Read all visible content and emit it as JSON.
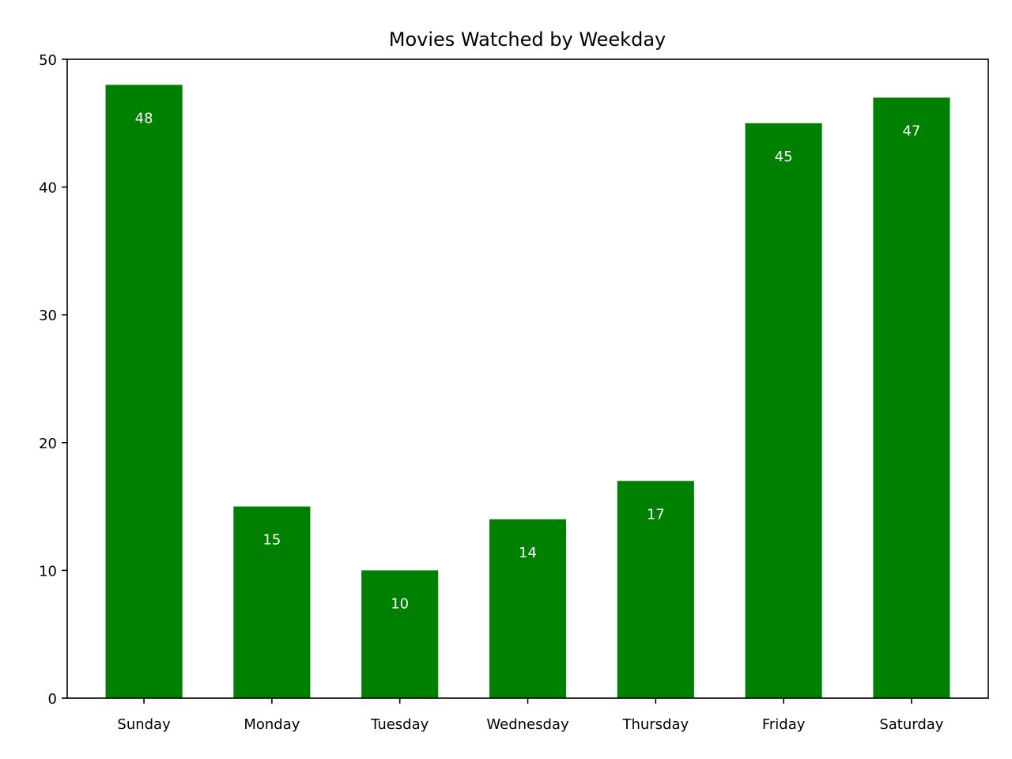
{
  "chart_data": {
    "type": "bar",
    "title": "Movies Watched by Weekday",
    "xlabel": "",
    "ylabel": "",
    "categories": [
      "Sunday",
      "Monday",
      "Tuesday",
      "Wednesday",
      "Thursday",
      "Friday",
      "Saturday"
    ],
    "values": [
      48,
      15,
      10,
      14,
      17,
      45,
      47
    ],
    "data_labels": [
      "48",
      "15",
      "10",
      "14",
      "17",
      "45",
      "47"
    ],
    "ylim": [
      0,
      50
    ],
    "yticks": [
      0,
      10,
      20,
      30,
      40,
      50
    ],
    "ytick_labels": [
      "0",
      "10",
      "20",
      "30",
      "40",
      "50"
    ],
    "grid": false,
    "legend": "none",
    "colors": {
      "bar": "#008000",
      "data_label": "#ffffff",
      "axes": "#000000"
    }
  }
}
